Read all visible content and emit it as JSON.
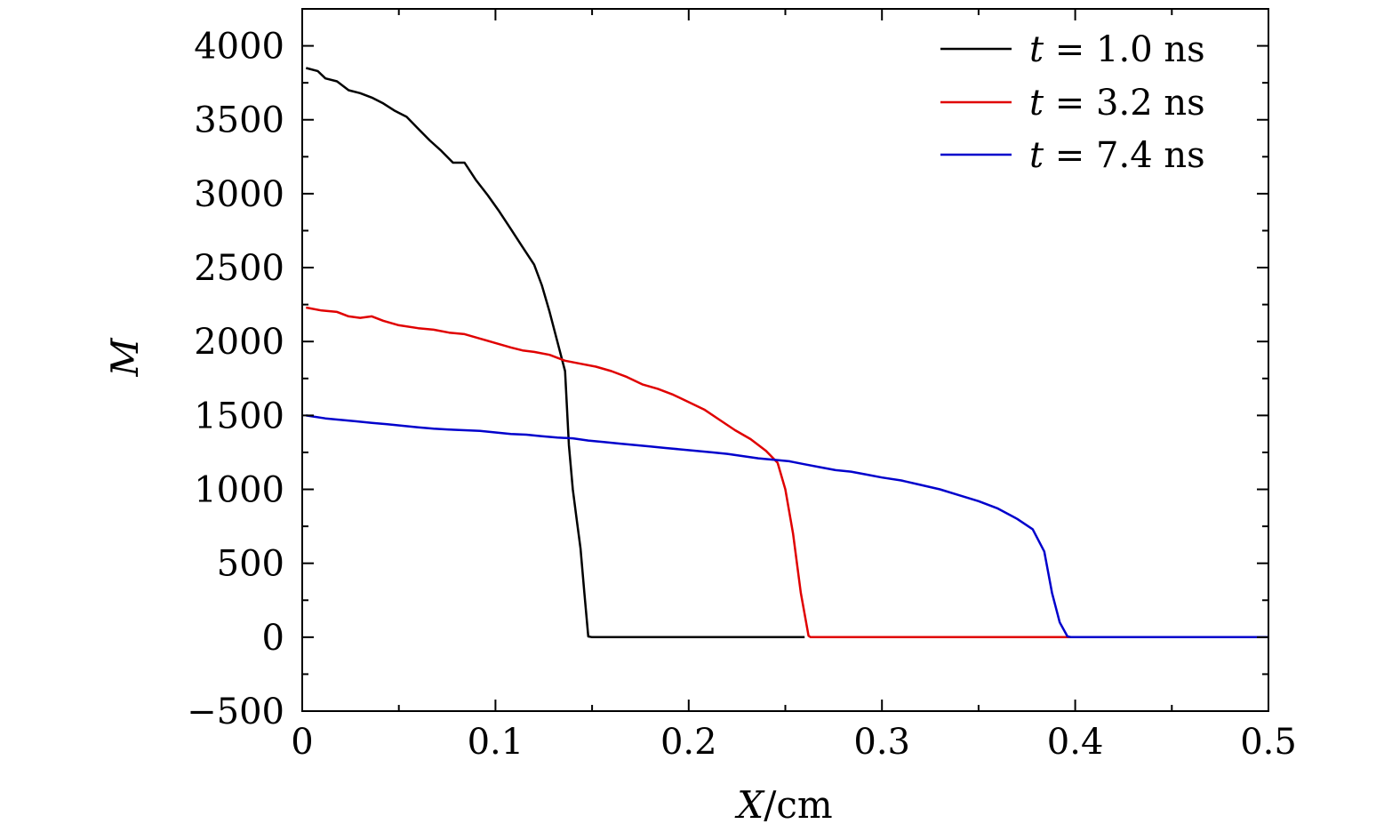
{
  "chart_data": {
    "type": "line",
    "title": "",
    "xlabel_var": "X",
    "xlabel_unit": "/cm",
    "ylabel": "M",
    "xlim": [
      0,
      0.5
    ],
    "ylim": [
      -500,
      4250
    ],
    "x_ticks": [
      0,
      0.1,
      0.2,
      0.3,
      0.4,
      0.5
    ],
    "x_tick_labels": [
      "0",
      "0.1",
      "0.2",
      "0.3",
      "0.4",
      "0.5"
    ],
    "y_ticks": [
      -500,
      0,
      500,
      1000,
      1500,
      2000,
      2500,
      3000,
      3500,
      4000
    ],
    "y_tick_labels": [
      "−500",
      "0",
      "500",
      "1000",
      "1500",
      "2000",
      "2500",
      "3000",
      "3500",
      "4000"
    ],
    "legend_position": "top-right",
    "series": [
      {
        "name": "t = 1.0 ns",
        "legend_var": "t",
        "legend_rest": " = 1.0 ns",
        "color": "#000000",
        "x": [
          0.002,
          0.008,
          0.012,
          0.018,
          0.024,
          0.03,
          0.036,
          0.042,
          0.048,
          0.054,
          0.06,
          0.066,
          0.072,
          0.078,
          0.084,
          0.09,
          0.096,
          0.102,
          0.108,
          0.114,
          0.12,
          0.124,
          0.128,
          0.132,
          0.136,
          0.138,
          0.14,
          0.142,
          0.144,
          0.146,
          0.148,
          0.15,
          0.16,
          0.2,
          0.26
        ],
        "y": [
          3850,
          3830,
          3780,
          3760,
          3700,
          3680,
          3650,
          3610,
          3560,
          3520,
          3440,
          3360,
          3290,
          3210,
          3210,
          3090,
          2990,
          2880,
          2760,
          2640,
          2520,
          2380,
          2200,
          2000,
          1800,
          1300,
          1000,
          800,
          600,
          300,
          5,
          0,
          0,
          0,
          0
        ]
      },
      {
        "name": "t = 3.2 ns",
        "legend_var": "t",
        "legend_rest": " = 3.2 ns",
        "color": "#e00000",
        "x": [
          0.002,
          0.01,
          0.018,
          0.024,
          0.03,
          0.036,
          0.042,
          0.05,
          0.06,
          0.068,
          0.076,
          0.084,
          0.092,
          0.1,
          0.108,
          0.114,
          0.12,
          0.128,
          0.136,
          0.144,
          0.152,
          0.16,
          0.168,
          0.176,
          0.184,
          0.192,
          0.2,
          0.208,
          0.216,
          0.224,
          0.232,
          0.24,
          0.246,
          0.25,
          0.254,
          0.258,
          0.262,
          0.263,
          0.3,
          0.4
        ],
        "y": [
          2230,
          2210,
          2200,
          2170,
          2160,
          2170,
          2140,
          2110,
          2090,
          2080,
          2060,
          2050,
          2020,
          1990,
          1960,
          1940,
          1930,
          1910,
          1870,
          1850,
          1830,
          1800,
          1760,
          1710,
          1680,
          1640,
          1590,
          1540,
          1470,
          1400,
          1340,
          1260,
          1180,
          1000,
          700,
          300,
          10,
          0,
          0,
          0
        ]
      },
      {
        "name": "t = 7.4 ns",
        "legend_var": "t",
        "legend_rest": " = 7.4 ns",
        "color": "#0000cc",
        "x": [
          0.002,
          0.012,
          0.02,
          0.028,
          0.036,
          0.044,
          0.052,
          0.06,
          0.068,
          0.076,
          0.084,
          0.092,
          0.1,
          0.108,
          0.116,
          0.124,
          0.132,
          0.14,
          0.148,
          0.156,
          0.164,
          0.172,
          0.18,
          0.188,
          0.196,
          0.204,
          0.212,
          0.22,
          0.228,
          0.236,
          0.244,
          0.252,
          0.26,
          0.268,
          0.276,
          0.284,
          0.292,
          0.3,
          0.31,
          0.32,
          0.33,
          0.34,
          0.35,
          0.36,
          0.37,
          0.378,
          0.384,
          0.388,
          0.392,
          0.396,
          0.398,
          0.42,
          0.5
        ],
        "y": [
          1500,
          1480,
          1470,
          1460,
          1450,
          1440,
          1430,
          1420,
          1410,
          1405,
          1400,
          1395,
          1385,
          1375,
          1370,
          1360,
          1350,
          1345,
          1330,
          1320,
          1310,
          1300,
          1290,
          1280,
          1270,
          1260,
          1250,
          1240,
          1225,
          1210,
          1200,
          1190,
          1170,
          1150,
          1130,
          1120,
          1100,
          1080,
          1060,
          1030,
          1000,
          960,
          920,
          870,
          800,
          730,
          580,
          300,
          100,
          5,
          0,
          0,
          0
        ]
      }
    ]
  }
}
